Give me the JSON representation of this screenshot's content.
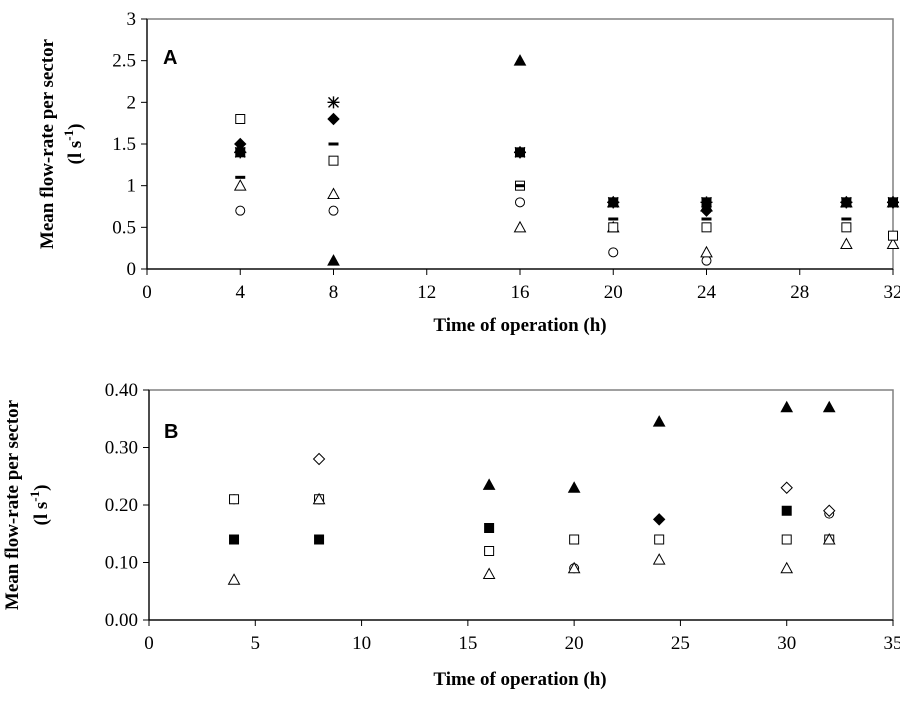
{
  "chart_data": [
    {
      "type": "scatter",
      "panel_label": "A",
      "xlabel": "Time of operation (h)",
      "ylabel_line1": "Mean flow-rate per sector",
      "ylabel_line2": "(l s",
      "ylabel_sup": "-1",
      "ylabel_close": ")",
      "xlim": [
        0,
        32
      ],
      "ylim": [
        0,
        3
      ],
      "xticks": [
        "0",
        "4",
        "8",
        "12",
        "16",
        "20",
        "24",
        "28",
        "32"
      ],
      "yticks": [
        "0",
        "0.5",
        "1",
        "1.5",
        "2",
        "2.5",
        "3"
      ],
      "grid": false,
      "series": [
        {
          "marker": "circle-open",
          "x": [
            4,
            8,
            16,
            20,
            24
          ],
          "y": [
            0.7,
            0.7,
            0.8,
            0.2,
            0.1
          ]
        },
        {
          "marker": "triangle-open",
          "x": [
            4,
            8,
            16,
            20,
            24,
            30,
            32
          ],
          "y": [
            1.0,
            0.9,
            0.5,
            0.5,
            0.2,
            0.3,
            0.3
          ]
        },
        {
          "marker": "square-open",
          "x": [
            4,
            8,
            16,
            20,
            24,
            30,
            32
          ],
          "y": [
            1.8,
            1.3,
            1.0,
            0.5,
            0.5,
            0.5,
            0.4
          ]
        },
        {
          "marker": "dash",
          "x": [
            4,
            8,
            16,
            20,
            24,
            30,
            32
          ],
          "y": [
            1.1,
            1.5,
            1.0,
            0.6,
            0.6,
            0.6,
            0.8
          ]
        },
        {
          "marker": "diamond-filled",
          "x": [
            4,
            8,
            16,
            20,
            24,
            30,
            32
          ],
          "y": [
            1.5,
            1.8,
            1.4,
            0.8,
            0.7,
            0.8,
            0.8
          ]
        },
        {
          "marker": "triangle-filled",
          "x": [
            4,
            8,
            16,
            20,
            24,
            30,
            32
          ],
          "y": [
            1.45,
            0.1,
            2.5,
            0.8,
            0.75,
            0.8,
            0.8
          ]
        },
        {
          "marker": "square-filled",
          "x": [
            4,
            16,
            20,
            24,
            30,
            32
          ],
          "y": [
            1.4,
            1.4,
            0.8,
            0.8,
            0.8,
            0.8
          ]
        },
        {
          "marker": "asterisk",
          "x": [
            4,
            8,
            16,
            20,
            24,
            30,
            32
          ],
          "y": [
            1.4,
            2.0,
            1.4,
            0.8,
            0.8,
            0.8,
            0.8
          ]
        }
      ]
    },
    {
      "type": "scatter",
      "panel_label": "B",
      "xlabel": "Time of operation (h)",
      "ylabel_line1": "Mean flow-rate per sector",
      "ylabel_line2": "(l s",
      "ylabel_sup": "-1",
      "ylabel_close": ")",
      "xlim": [
        0,
        35
      ],
      "ylim": [
        0,
        0.4
      ],
      "xticks": [
        "0",
        "5",
        "10",
        "15",
        "20",
        "25",
        "30",
        "35"
      ],
      "yticks": [
        "0.00",
        "0.10",
        "0.20",
        "0.30",
        "0.40"
      ],
      "grid": false,
      "series": [
        {
          "marker": "circle-open",
          "x": [
            4,
            8,
            16,
            20,
            32
          ],
          "y": [
            0.21,
            0.21,
            0.12,
            0.09,
            0.185
          ]
        },
        {
          "marker": "square-open",
          "x": [
            4,
            8,
            16,
            20,
            24,
            30,
            32
          ],
          "y": [
            0.21,
            0.21,
            0.12,
            0.14,
            0.14,
            0.14,
            0.14
          ]
        },
        {
          "marker": "triangle-open",
          "x": [
            4,
            8,
            16,
            20,
            24,
            30,
            32
          ],
          "y": [
            0.07,
            0.21,
            0.08,
            0.09,
            0.105,
            0.09,
            0.14
          ]
        },
        {
          "marker": "diamond-open",
          "x": [
            8,
            30,
            32
          ],
          "y": [
            0.28,
            0.23,
            0.19
          ]
        },
        {
          "marker": "square-filled",
          "x": [
            4,
            8,
            16,
            30
          ],
          "y": [
            0.14,
            0.14,
            0.16,
            0.19
          ]
        },
        {
          "marker": "triangle-filled",
          "x": [
            16,
            20,
            24,
            30,
            32
          ],
          "y": [
            0.235,
            0.23,
            0.345,
            0.37,
            0.37
          ]
        },
        {
          "marker": "diamond-filled",
          "x": [
            24
          ],
          "y": [
            0.175
          ]
        }
      ]
    }
  ]
}
